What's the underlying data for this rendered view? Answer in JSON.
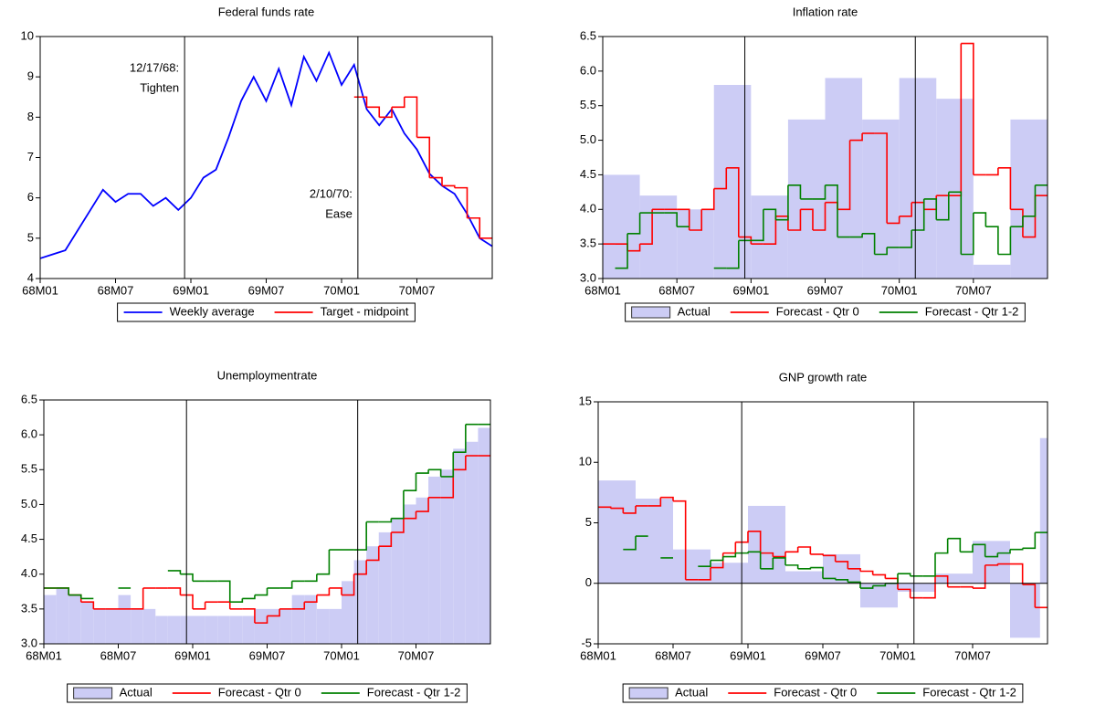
{
  "chart_data": [
    {
      "type": "line",
      "title": "Federal funds rate",
      "x": [
        0,
        1,
        2,
        3,
        4,
        5,
        6,
        7,
        8,
        9,
        10,
        11,
        12,
        13,
        14,
        15,
        16,
        17,
        18,
        19,
        20,
        21,
        22,
        23,
        24,
        25,
        26,
        27,
        28,
        29,
        30,
        31,
        32,
        33,
        34,
        35,
        36
      ],
      "xlim": [
        0,
        36
      ],
      "xticks": [
        {
          "value": 0,
          "label": "68M01"
        },
        {
          "value": 6,
          "label": "68M07"
        },
        {
          "value": 12,
          "label": "69M01"
        },
        {
          "value": 18,
          "label": "69M07"
        },
        {
          "value": 24,
          "label": "70M01"
        },
        {
          "value": 30,
          "label": "70M07"
        }
      ],
      "ylim": [
        4,
        10
      ],
      "yticks": [
        4,
        5,
        6,
        7,
        8,
        9,
        10
      ],
      "vlines": [
        11.5,
        25.3
      ],
      "annotations": [
        [
          "12/17/68:",
          "Tighten"
        ],
        [
          "2/10/70:",
          "Ease"
        ]
      ],
      "series": [
        {
          "name": "Weekly average",
          "color": "#0000ff",
          "kind": "line",
          "values": [
            4.5,
            4.6,
            4.7,
            5.2,
            5.7,
            6.2,
            5.9,
            6.1,
            6.1,
            5.8,
            6.0,
            5.7,
            6.0,
            6.5,
            6.7,
            7.5,
            8.4,
            9.0,
            8.4,
            9.2,
            8.3,
            9.5,
            8.9,
            9.6,
            8.8,
            9.3,
            8.2,
            7.8,
            8.2,
            7.6,
            7.2,
            6.6,
            6.3,
            6.1,
            5.6,
            5.0,
            4.8
          ]
        },
        {
          "name": "Target - midpoint",
          "color": "#ff0000",
          "kind": "step",
          "values": [
            null,
            null,
            null,
            null,
            null,
            null,
            null,
            null,
            null,
            null,
            null,
            null,
            null,
            null,
            null,
            null,
            null,
            null,
            null,
            null,
            null,
            null,
            null,
            null,
            null,
            8.5,
            8.25,
            8.0,
            8.25,
            8.5,
            7.5,
            6.5,
            6.3,
            6.25,
            5.5,
            5.0,
            5.0
          ]
        }
      ]
    },
    {
      "type": "combo",
      "title": "Inflation rate",
      "x": [
        0,
        1,
        2,
        3,
        4,
        5,
        6,
        7,
        8,
        9,
        10,
        11,
        12,
        13,
        14,
        15,
        16,
        17,
        18,
        19,
        20,
        21,
        22,
        23,
        24,
        25,
        26,
        27,
        28,
        29,
        30,
        31,
        32,
        33,
        34,
        35
      ],
      "xlim": [
        0,
        36
      ],
      "xticks": [
        {
          "value": 0,
          "label": "68M01"
        },
        {
          "value": 6,
          "label": "68M07"
        },
        {
          "value": 12,
          "label": "69M01"
        },
        {
          "value": 18,
          "label": "69M07"
        },
        {
          "value": 24,
          "label": "70M01"
        },
        {
          "value": 30,
          "label": "70M07"
        }
      ],
      "ylim": [
        3,
        6.5
      ],
      "yticks": [
        {
          "value": 3,
          "label": "3.0"
        },
        {
          "value": 3.5,
          "label": "3.5"
        },
        {
          "value": 4,
          "label": "4.0"
        },
        {
          "value": 4.5,
          "label": "4.5"
        },
        {
          "value": 5,
          "label": "5.0"
        },
        {
          "value": 5.5,
          "label": "5.5"
        },
        {
          "value": 6,
          "label": "6.0"
        },
        {
          "value": 6.5,
          "label": "6.5"
        }
      ],
      "vlines": [
        11.5,
        25.3
      ],
      "series": [
        {
          "name": "Actual",
          "color": "#ccccf5",
          "kind": "bar",
          "x": [
            0,
            3,
            6,
            9,
            12,
            15,
            18,
            21,
            24,
            27,
            30,
            33
          ],
          "values": [
            4.5,
            4.2,
            4.0,
            5.8,
            4.2,
            5.3,
            5.9,
            5.3,
            5.9,
            5.6,
            3.2,
            5.3
          ]
        },
        {
          "name": "Forecast - Qtr 0",
          "color": "#ff0000",
          "kind": "step",
          "values": [
            3.5,
            3.5,
            3.4,
            3.5,
            4.0,
            4.0,
            4.0,
            3.7,
            4.0,
            4.3,
            4.6,
            3.6,
            3.5,
            3.5,
            3.9,
            3.7,
            4.0,
            3.7,
            4.1,
            4.0,
            5.0,
            5.1,
            5.1,
            3.8,
            3.9,
            4.1,
            4.0,
            4.2,
            4.2,
            6.4,
            4.5,
            4.5,
            4.6,
            4.0,
            3.6,
            4.2
          ]
        },
        {
          "name": "Forecast - Qtr 1-2",
          "color": "#008000",
          "kind": "step",
          "values": [
            null,
            3.15,
            3.65,
            3.95,
            3.95,
            3.95,
            3.75,
            null,
            null,
            3.15,
            3.15,
            3.55,
            3.55,
            4.0,
            3.85,
            4.35,
            4.15,
            4.15,
            4.35,
            3.6,
            3.6,
            3.65,
            3.35,
            3.45,
            3.45,
            3.7,
            4.15,
            3.85,
            4.25,
            3.35,
            3.95,
            3.75,
            3.35,
            3.75,
            3.9,
            4.35
          ]
        }
      ]
    },
    {
      "type": "combo",
      "title": "Unemploymentrate",
      "x": [
        0,
        1,
        2,
        3,
        4,
        5,
        6,
        7,
        8,
        9,
        10,
        11,
        12,
        13,
        14,
        15,
        16,
        17,
        18,
        19,
        20,
        21,
        22,
        23,
        24,
        25,
        26,
        27,
        28,
        29,
        30,
        31,
        32,
        33,
        34,
        35
      ],
      "xlim": [
        0,
        36
      ],
      "xticks": [
        {
          "value": 0,
          "label": "68M01"
        },
        {
          "value": 6,
          "label": "68M07"
        },
        {
          "value": 12,
          "label": "69M01"
        },
        {
          "value": 18,
          "label": "69M07"
        },
        {
          "value": 24,
          "label": "70M01"
        },
        {
          "value": 30,
          "label": "70M07"
        }
      ],
      "ylim": [
        3,
        6.5
      ],
      "yticks": [
        {
          "value": 3,
          "label": "3.0"
        },
        {
          "value": 3.5,
          "label": "3.5"
        },
        {
          "value": 4,
          "label": "4.0"
        },
        {
          "value": 4.5,
          "label": "4.5"
        },
        {
          "value": 5,
          "label": "5.0"
        },
        {
          "value": 5.5,
          "label": "5.5"
        },
        {
          "value": 6,
          "label": "6.0"
        },
        {
          "value": 6.5,
          "label": "6.5"
        }
      ],
      "vlines": [
        11.5,
        25.3
      ],
      "series": [
        {
          "name": "Actual",
          "color": "#ccccf5",
          "kind": "bar",
          "values": [
            3.7,
            3.8,
            3.7,
            3.6,
            3.5,
            3.5,
            3.7,
            3.5,
            3.5,
            3.4,
            3.4,
            3.4,
            3.4,
            3.4,
            3.4,
            3.4,
            3.4,
            3.5,
            3.5,
            3.5,
            3.7,
            3.7,
            3.5,
            3.5,
            3.9,
            4.2,
            4.4,
            4.6,
            4.8,
            5.0,
            5.1,
            5.4,
            5.5,
            5.8,
            5.9,
            6.1
          ]
        },
        {
          "name": "Forecast - Qtr 0",
          "color": "#ff0000",
          "kind": "step",
          "values": [
            3.8,
            3.8,
            3.7,
            3.6,
            3.5,
            3.5,
            3.5,
            3.5,
            3.8,
            3.8,
            3.8,
            3.7,
            3.5,
            3.6,
            3.6,
            3.5,
            3.5,
            3.3,
            3.4,
            3.5,
            3.5,
            3.6,
            3.7,
            3.8,
            3.7,
            4.0,
            4.2,
            4.4,
            4.6,
            4.8,
            4.9,
            5.1,
            5.1,
            5.5,
            5.7,
            5.7
          ]
        },
        {
          "name": "Forecast - Qtr 1-2",
          "color": "#008000",
          "kind": "step",
          "values": [
            3.8,
            3.8,
            3.7,
            3.65,
            null,
            null,
            3.8,
            null,
            null,
            null,
            4.05,
            4.0,
            3.9,
            3.9,
            3.9,
            3.6,
            3.65,
            3.7,
            3.8,
            3.8,
            3.9,
            3.9,
            4.0,
            4.35,
            4.35,
            4.35,
            4.75,
            4.75,
            4.8,
            5.2,
            5.45,
            5.5,
            5.4,
            5.75,
            6.15,
            6.15
          ]
        }
      ]
    },
    {
      "type": "combo",
      "title": "GNP growth rate",
      "x": [
        0,
        1,
        2,
        3,
        4,
        5,
        6,
        7,
        8,
        9,
        10,
        11,
        12,
        13,
        14,
        15,
        16,
        17,
        18,
        19,
        20,
        21,
        22,
        23,
        24,
        25,
        26,
        27,
        28,
        29,
        30,
        31,
        32,
        33,
        34,
        35
      ],
      "xlim": [
        0,
        36
      ],
      "xticks": [
        {
          "value": 0,
          "label": "68M01"
        },
        {
          "value": 6,
          "label": "68M07"
        },
        {
          "value": 12,
          "label": "69M01"
        },
        {
          "value": 18,
          "label": "69M07"
        },
        {
          "value": 24,
          "label": "70M01"
        },
        {
          "value": 30,
          "label": "70M07"
        }
      ],
      "ylim": [
        -5,
        15
      ],
      "yticks": [
        -5,
        0,
        5,
        10,
        15
      ],
      "zero_line": true,
      "vlines": [
        11.5,
        25.3
      ],
      "series": [
        {
          "name": "Actual",
          "color": "#ccccf5",
          "kind": "bar",
          "x": [
            0,
            3,
            6,
            9,
            12,
            15,
            18,
            21,
            24,
            27,
            30,
            33,
            35.4
          ],
          "values": [
            8.5,
            7.0,
            2.8,
            1.7,
            6.4,
            1.0,
            2.4,
            -2.0,
            -0.7,
            0.8,
            3.5,
            -4.5,
            12.0
          ]
        },
        {
          "name": "Forecast - Qtr 0",
          "color": "#ff0000",
          "kind": "step",
          "values": [
            6.3,
            6.2,
            5.8,
            6.4,
            6.4,
            7.1,
            6.8,
            0.3,
            0.3,
            1.3,
            2.5,
            3.4,
            4.3,
            2.5,
            2.2,
            2.6,
            3.0,
            2.4,
            2.3,
            1.8,
            1.2,
            1.0,
            0.7,
            0.4,
            -0.5,
            -1.2,
            -1.2,
            0.6,
            -0.3,
            -0.3,
            -0.4,
            1.5,
            1.6,
            1.6,
            -0.1,
            -2.0
          ]
        },
        {
          "name": "Forecast - Qtr 1-2",
          "color": "#008000",
          "kind": "step",
          "values": [
            null,
            null,
            2.8,
            3.9,
            null,
            2.1,
            null,
            null,
            1.4,
            1.9,
            2.2,
            2.5,
            2.6,
            1.2,
            2.1,
            1.5,
            1.2,
            1.3,
            0.4,
            0.3,
            0.1,
            -0.4,
            -0.2,
            0.0,
            0.8,
            0.6,
            0.6,
            2.5,
            3.7,
            2.6,
            3.2,
            2.2,
            2.5,
            2.8,
            2.9,
            4.2
          ]
        }
      ]
    }
  ]
}
